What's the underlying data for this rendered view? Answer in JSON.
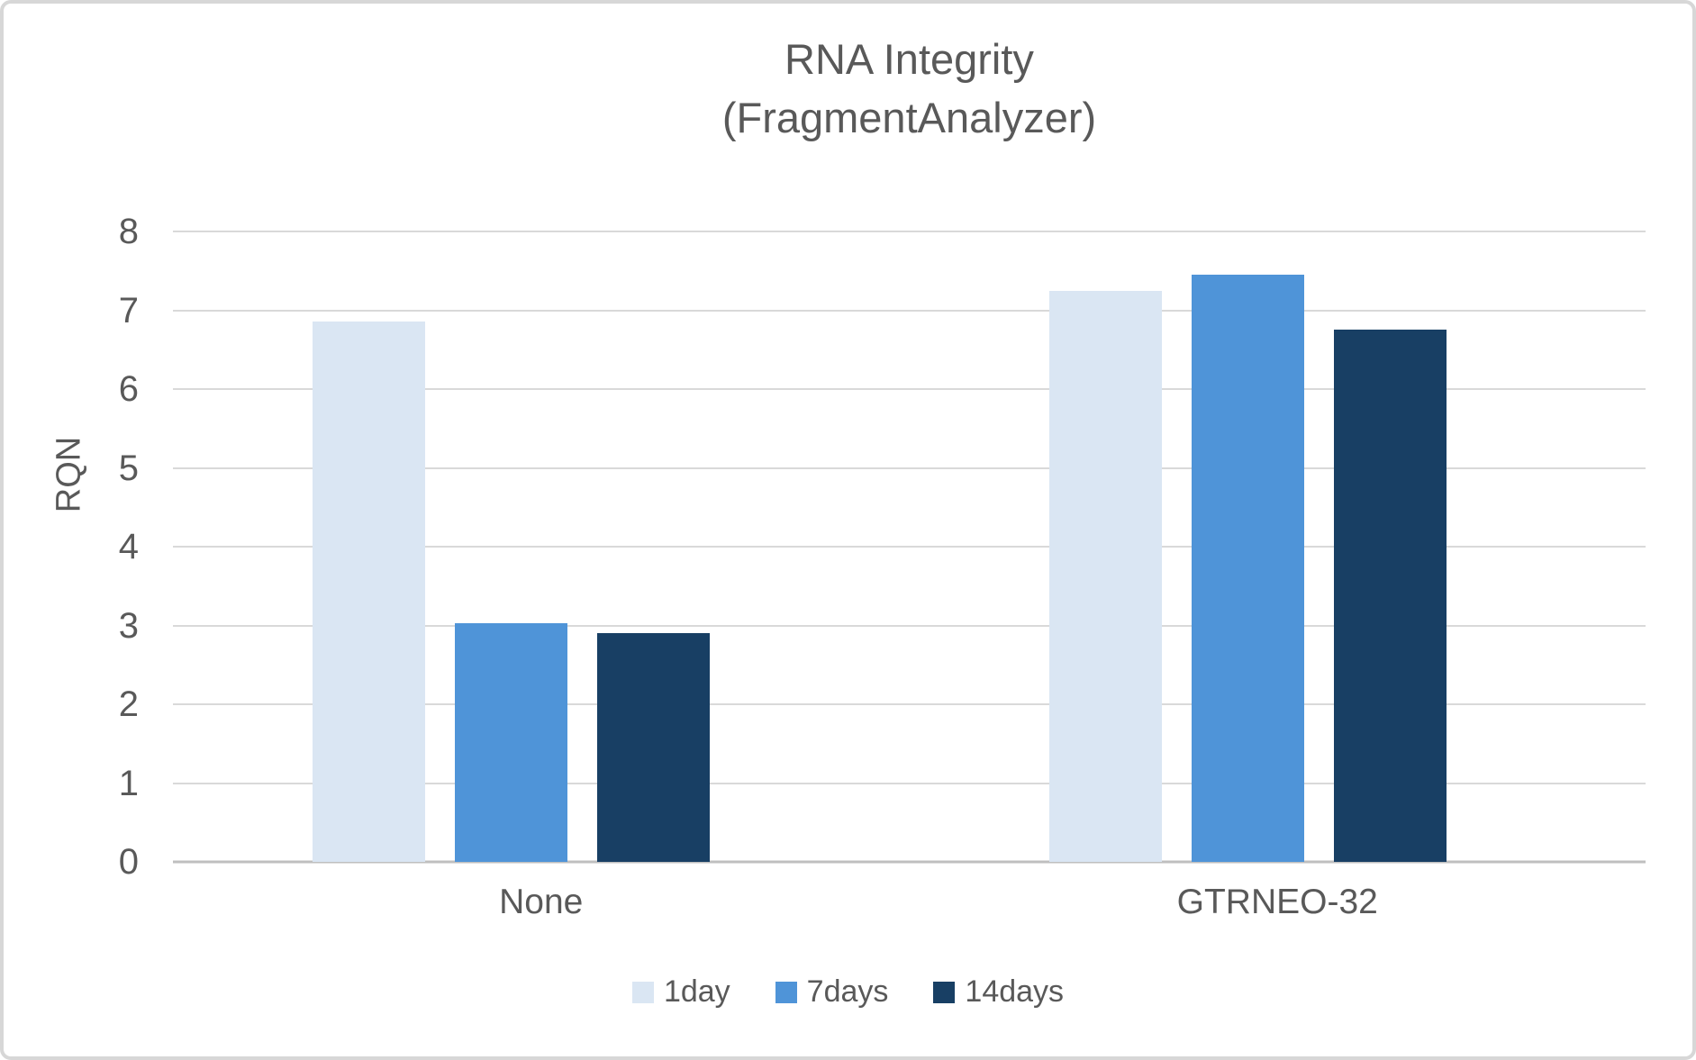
{
  "chart_data": {
    "type": "bar",
    "title_lines": [
      "RNA Integrity",
      "(FragmentAnalyzer)"
    ],
    "categories": [
      "None",
      "GTRNEO-32"
    ],
    "series": [
      {
        "name": "1day",
        "color": "#dae6f3",
        "values": [
          6.86,
          7.25
        ]
      },
      {
        "name": "7days",
        "color": "#4f94d8",
        "values": [
          3.03,
          7.45
        ]
      },
      {
        "name": "14days",
        "color": "#183f64",
        "values": [
          2.9,
          6.75
        ]
      }
    ],
    "xlabel": "",
    "ylabel": "RQN",
    "ylim": [
      0,
      8
    ],
    "yticks": [
      0,
      1,
      2,
      3,
      4,
      5,
      6,
      7,
      8
    ],
    "grid": true,
    "legend_position": "bottom"
  },
  "style": {
    "text_color": "#595959",
    "gridline_color": "#d9d9d9",
    "axis_line_color": "#bfbfbf",
    "frame_border_color": "#d7d7d7",
    "background": "#ffffff"
  }
}
